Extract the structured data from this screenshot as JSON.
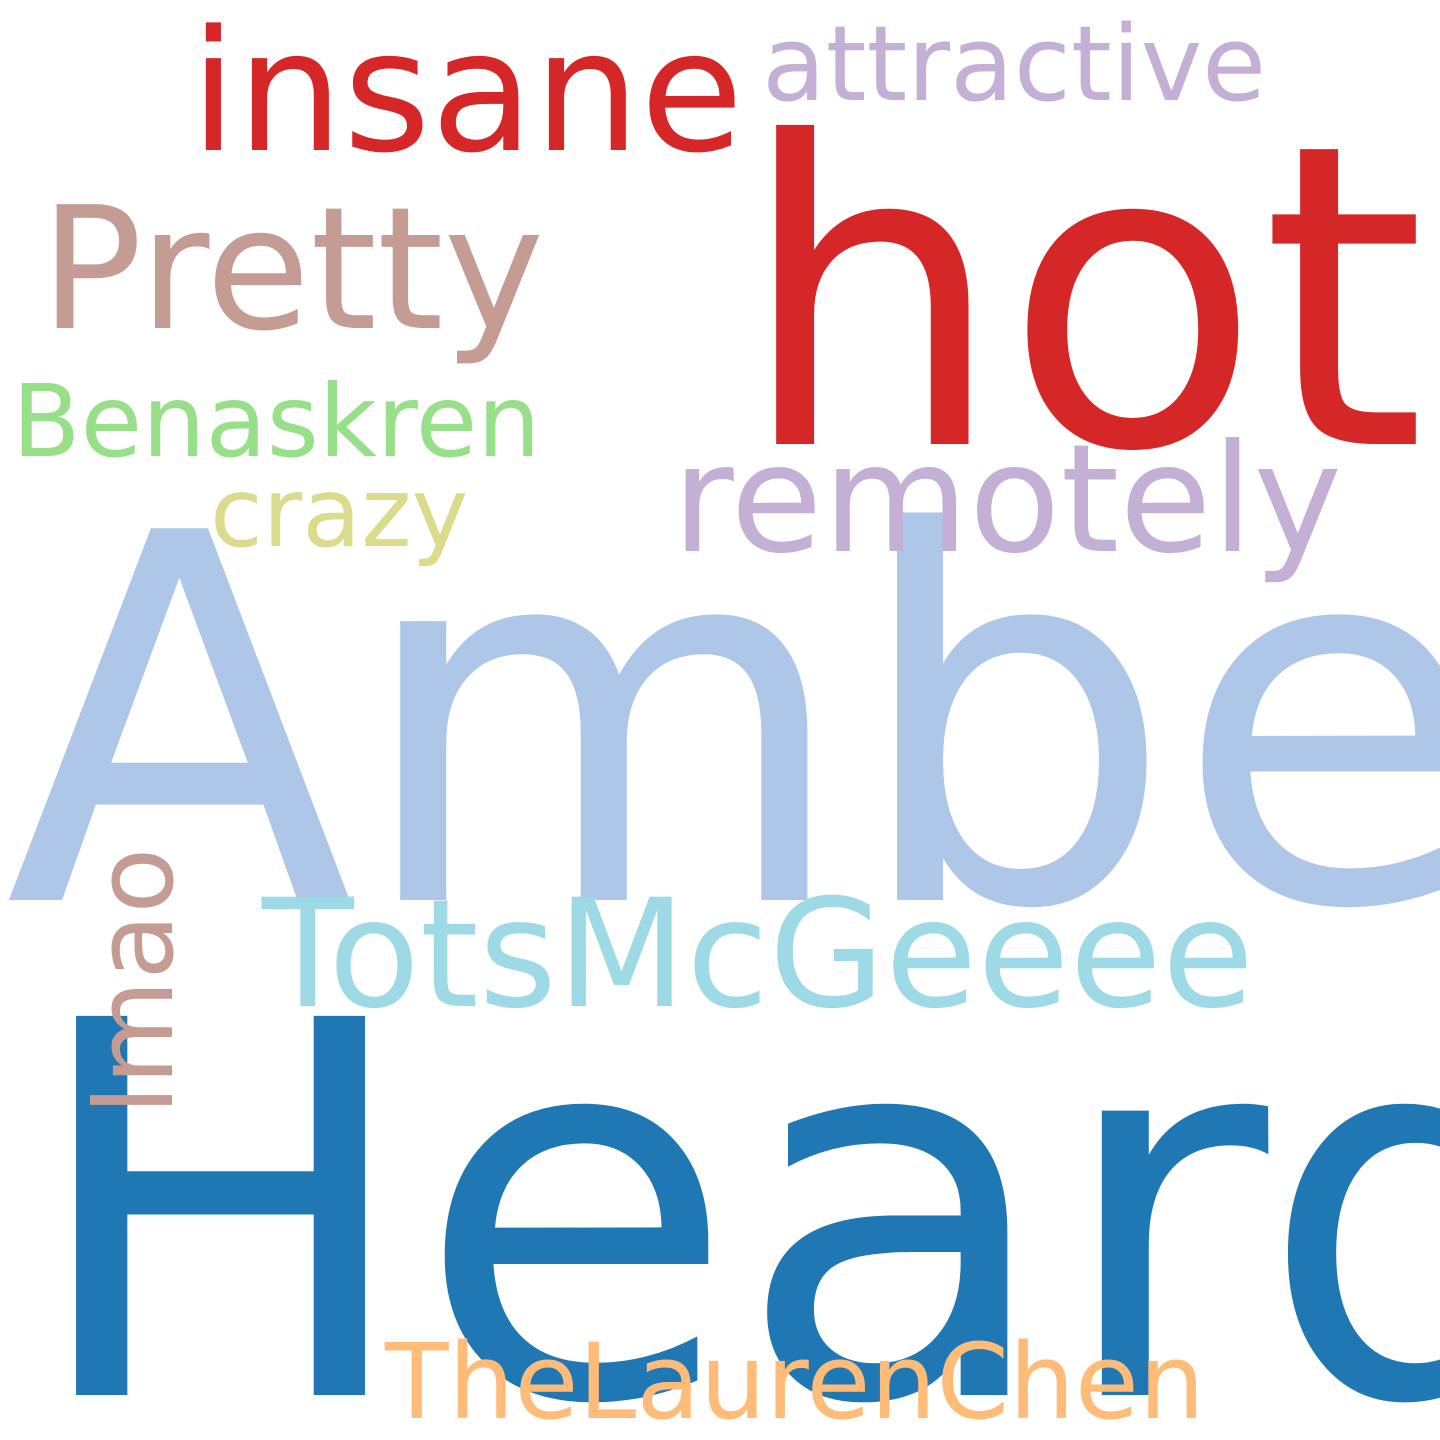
{
  "words": {
    "heard": {
      "text": "Heard",
      "color": "#1f77b4"
    },
    "amber": {
      "text": "Amber",
      "color": "#aec7e8"
    },
    "hot": {
      "text": "hot",
      "color": "#d62728"
    },
    "insane": {
      "text": "insane",
      "color": "#d62728"
    },
    "attractive": {
      "text": "attractive",
      "color": "#c5b0d5"
    },
    "pretty": {
      "text": "Pretty",
      "color": "#c49c94"
    },
    "benaskren": {
      "text": "Benaskren",
      "color": "#98df8a"
    },
    "remotely": {
      "text": "remotely",
      "color": "#c5b0d5"
    },
    "crazy": {
      "text": "crazy",
      "color": "#dbdb8d"
    },
    "totsmcgeeee": {
      "text": "TotsMcGeeee",
      "color": "#9edae5"
    },
    "lmao": {
      "text": "lmao",
      "color": "#c49c94"
    },
    "thelaurenchen": {
      "text": "TheLaurenChen",
      "color": "#ffbb78"
    }
  }
}
